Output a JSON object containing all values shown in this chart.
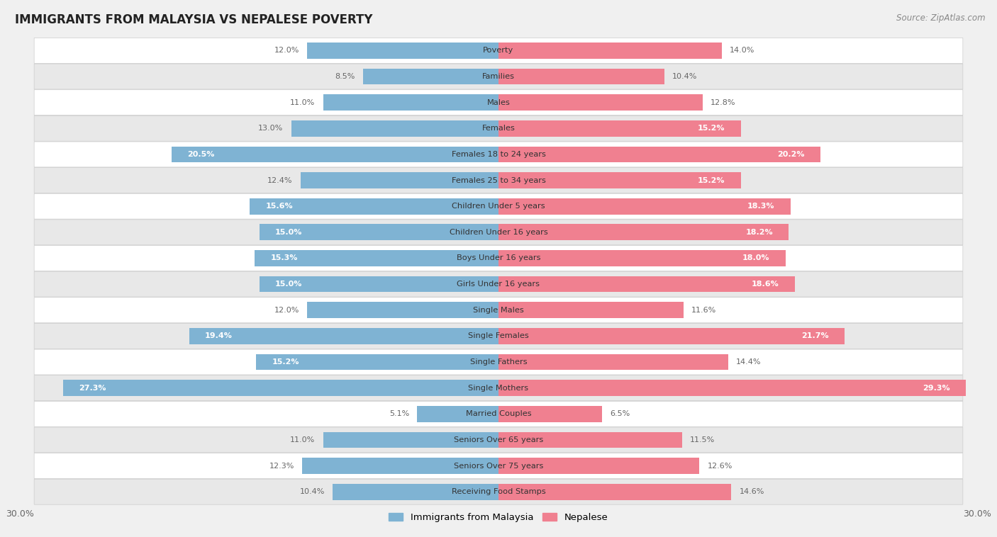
{
  "title": "IMMIGRANTS FROM MALAYSIA VS NEPALESE POVERTY",
  "source": "Source: ZipAtlas.com",
  "categories": [
    "Poverty",
    "Families",
    "Males",
    "Females",
    "Females 18 to 24 years",
    "Females 25 to 34 years",
    "Children Under 5 years",
    "Children Under 16 years",
    "Boys Under 16 years",
    "Girls Under 16 years",
    "Single Males",
    "Single Females",
    "Single Fathers",
    "Single Mothers",
    "Married Couples",
    "Seniors Over 65 years",
    "Seniors Over 75 years",
    "Receiving Food Stamps"
  ],
  "malaysia_values": [
    12.0,
    8.5,
    11.0,
    13.0,
    20.5,
    12.4,
    15.6,
    15.0,
    15.3,
    15.0,
    12.0,
    19.4,
    15.2,
    27.3,
    5.1,
    11.0,
    12.3,
    10.4
  ],
  "nepalese_values": [
    14.0,
    10.4,
    12.8,
    15.2,
    20.2,
    15.2,
    18.3,
    18.2,
    18.0,
    18.6,
    11.6,
    21.7,
    14.4,
    29.3,
    6.5,
    11.5,
    12.6,
    14.6
  ],
  "malaysia_color": "#7fb3d3",
  "nepalese_color": "#f08090",
  "malaysia_color_light": "#a8cce0",
  "nepalese_color_light": "#f5b8c4",
  "malaysia_label": "Immigrants from Malaysia",
  "nepalese_label": "Nepalese",
  "background_color": "#f0f0f0",
  "row_color_odd": "#ffffff",
  "row_color_even": "#e8e8e8",
  "xlim": 30.0,
  "label_threshold": 15.0,
  "inside_label_color": "#ffffff",
  "outside_label_color": "#666666"
}
